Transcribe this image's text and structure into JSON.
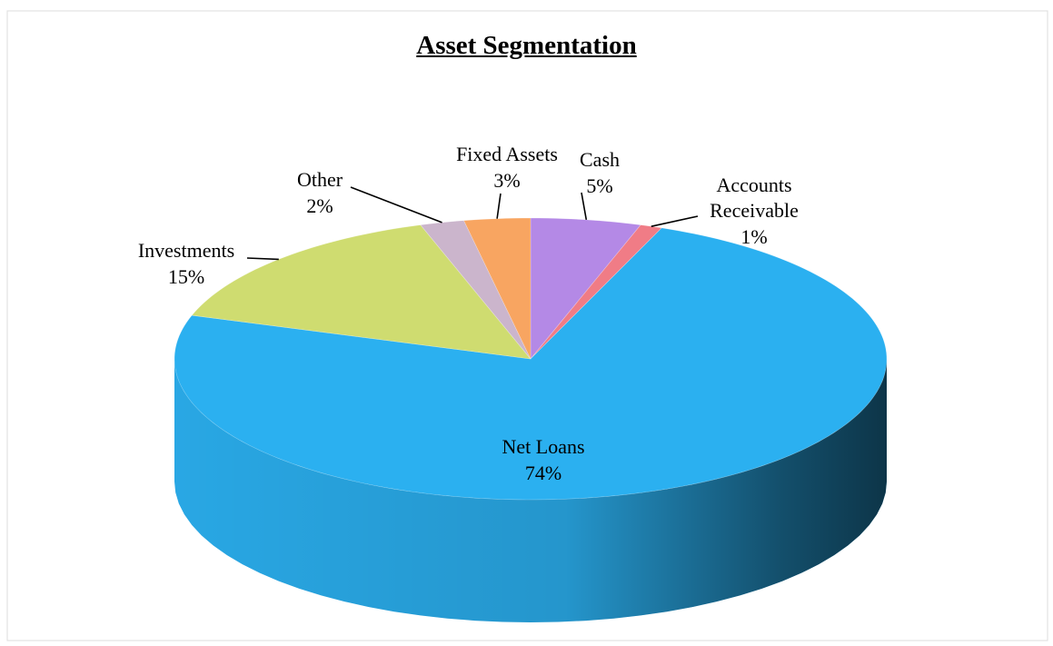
{
  "chart_data": {
    "type": "pie",
    "title": "Asset Segmentation",
    "categories": [
      "Cash",
      "Accounts Receivable",
      "Net Loans",
      "Investments",
      "Other",
      "Fixed Assets"
    ],
    "values": [
      5,
      1,
      74,
      15,
      2,
      3
    ],
    "value_labels": [
      "5%",
      "1%",
      "74%",
      "15%",
      "2%",
      "3%"
    ],
    "colors": [
      "#b489e6",
      "#f07c86",
      "#2bb0f0",
      "#cfdc70",
      "#cbb5cc",
      "#f8a561"
    ]
  }
}
